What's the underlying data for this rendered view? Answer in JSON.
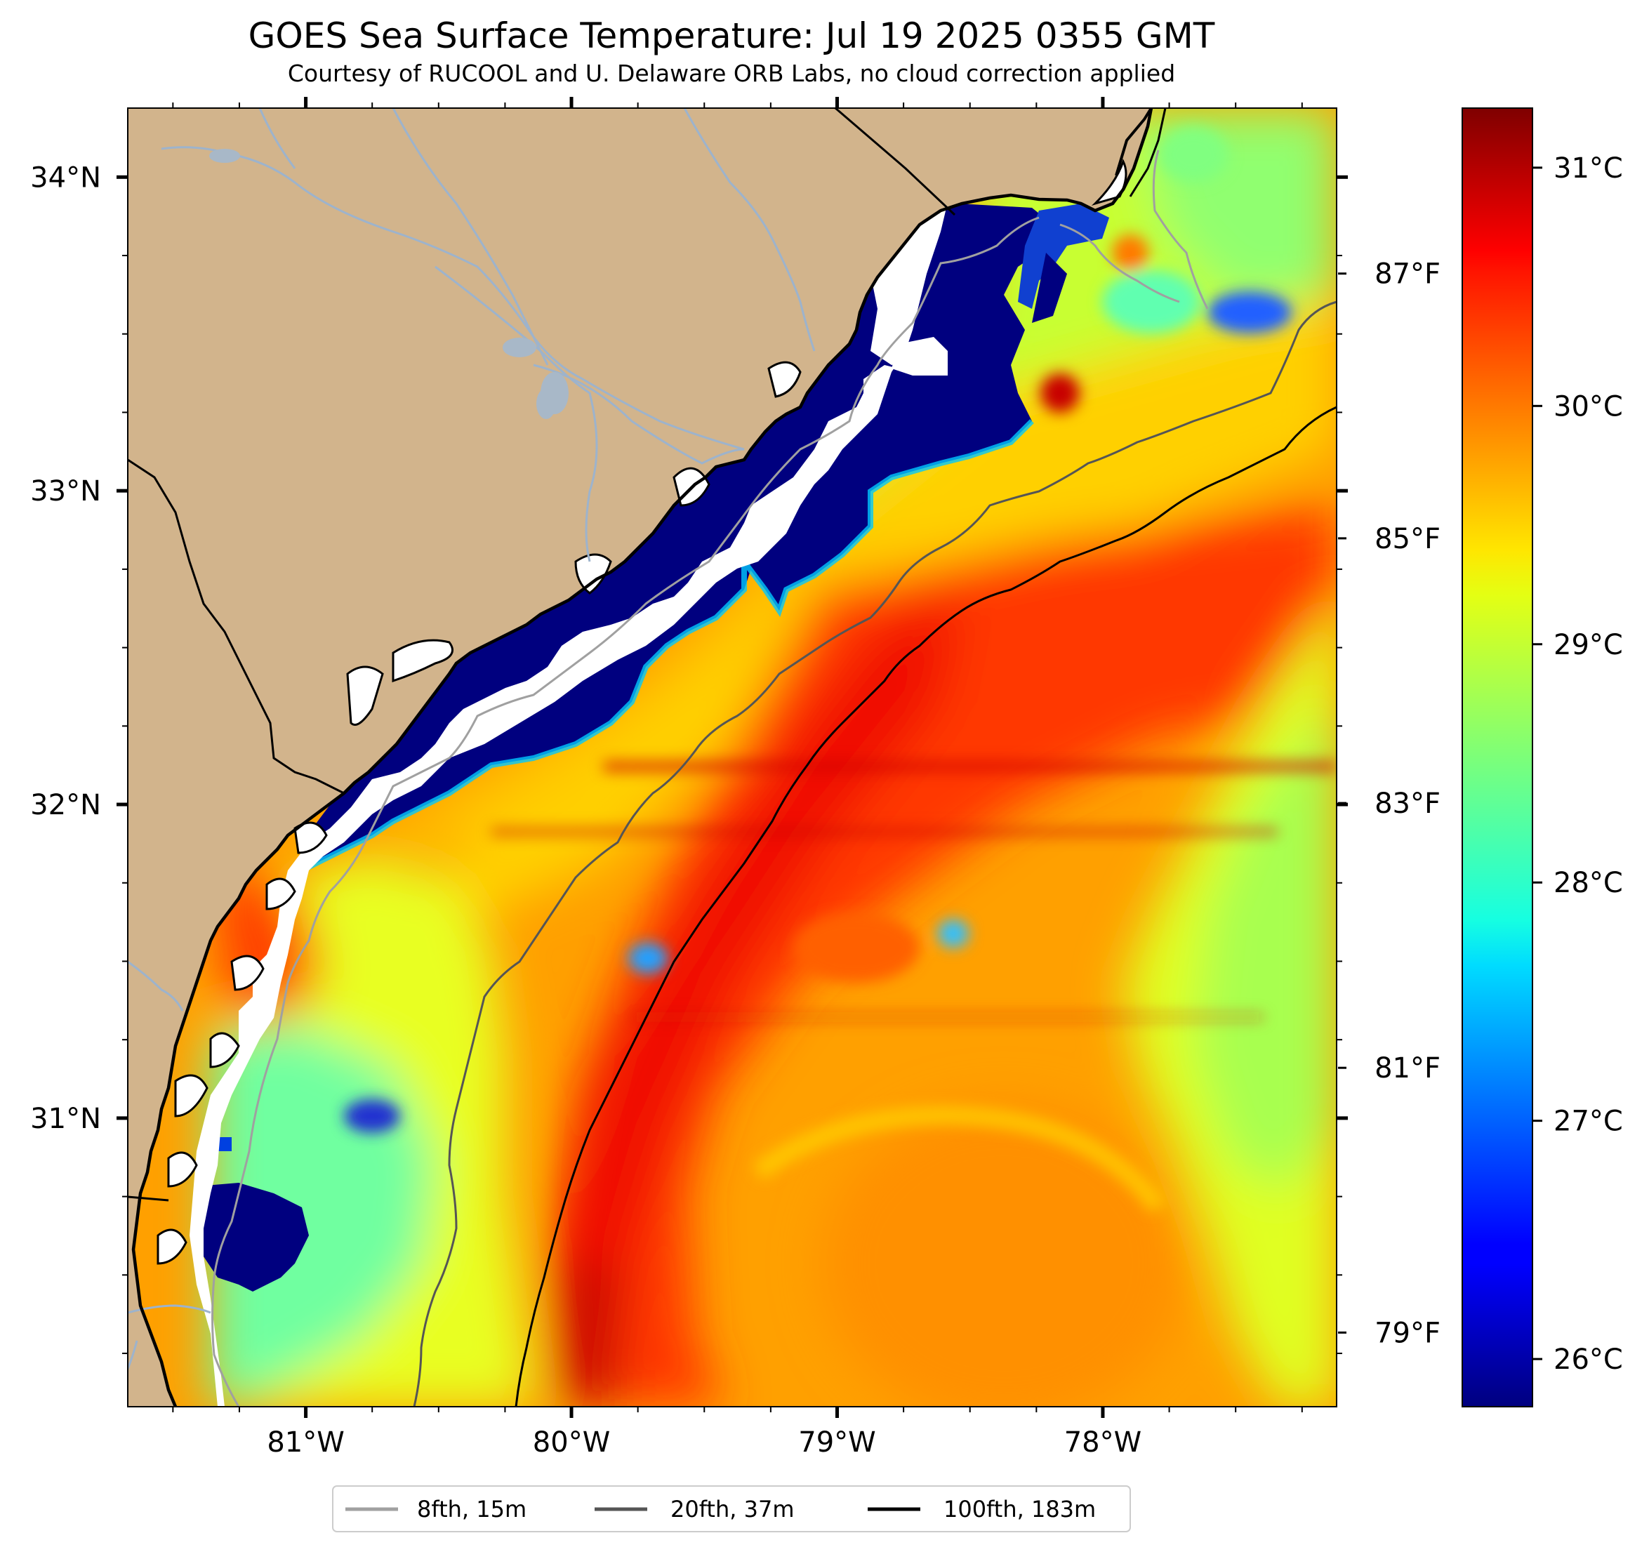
{
  "title": "GOES Sea Surface Temperature: Jul 19 2025 0355 GMT",
  "subtitle": "Courtesy of RUCOOL and U. Delaware ORB Labs, no cloud correction applied",
  "map": {
    "lon_range": [
      -81.67,
      -77.12
    ],
    "lat_range": [
      30.08,
      34.22
    ],
    "lon_ticks": [
      {
        "value": -81,
        "label": "81°W"
      },
      {
        "value": -80,
        "label": "80°W"
      },
      {
        "value": -79,
        "label": "79°W"
      },
      {
        "value": -78,
        "label": "78°W"
      }
    ],
    "lat_ticks": [
      {
        "value": 34,
        "label": "34°N"
      },
      {
        "value": 33,
        "label": "33°N"
      },
      {
        "value": 32,
        "label": "32°N"
      },
      {
        "value": 31,
        "label": "31°N"
      }
    ],
    "land_color": "#d2b48c",
    "no_data_color": "#ffffff",
    "coastline_color": "#000000",
    "river_color": "#9db3cc"
  },
  "colorbar": {
    "colormap": "jet",
    "min_c": 25.8,
    "max_c": 31.25,
    "celsius_ticks": [
      {
        "value": 26,
        "label": "26°C"
      },
      {
        "value": 27,
        "label": "27°C"
      },
      {
        "value": 28,
        "label": "28°C"
      },
      {
        "value": 29,
        "label": "29°C"
      },
      {
        "value": 30,
        "label": "30°C"
      },
      {
        "value": 31,
        "label": "31°C"
      }
    ],
    "fahrenheit_ticks": [
      {
        "value": 79,
        "label": "79°F"
      },
      {
        "value": 81,
        "label": "81°F"
      },
      {
        "value": 83,
        "label": "83°F"
      },
      {
        "value": 85,
        "label": "85°F"
      },
      {
        "value": 87,
        "label": "87°F"
      }
    ]
  },
  "legend": {
    "items": [
      {
        "label": "8fth, 15m",
        "color": "#a0a0a0"
      },
      {
        "label": "20fth, 37m",
        "color": "#555555"
      },
      {
        "label": "100fth, 183m",
        "color": "#000000"
      }
    ]
  }
}
